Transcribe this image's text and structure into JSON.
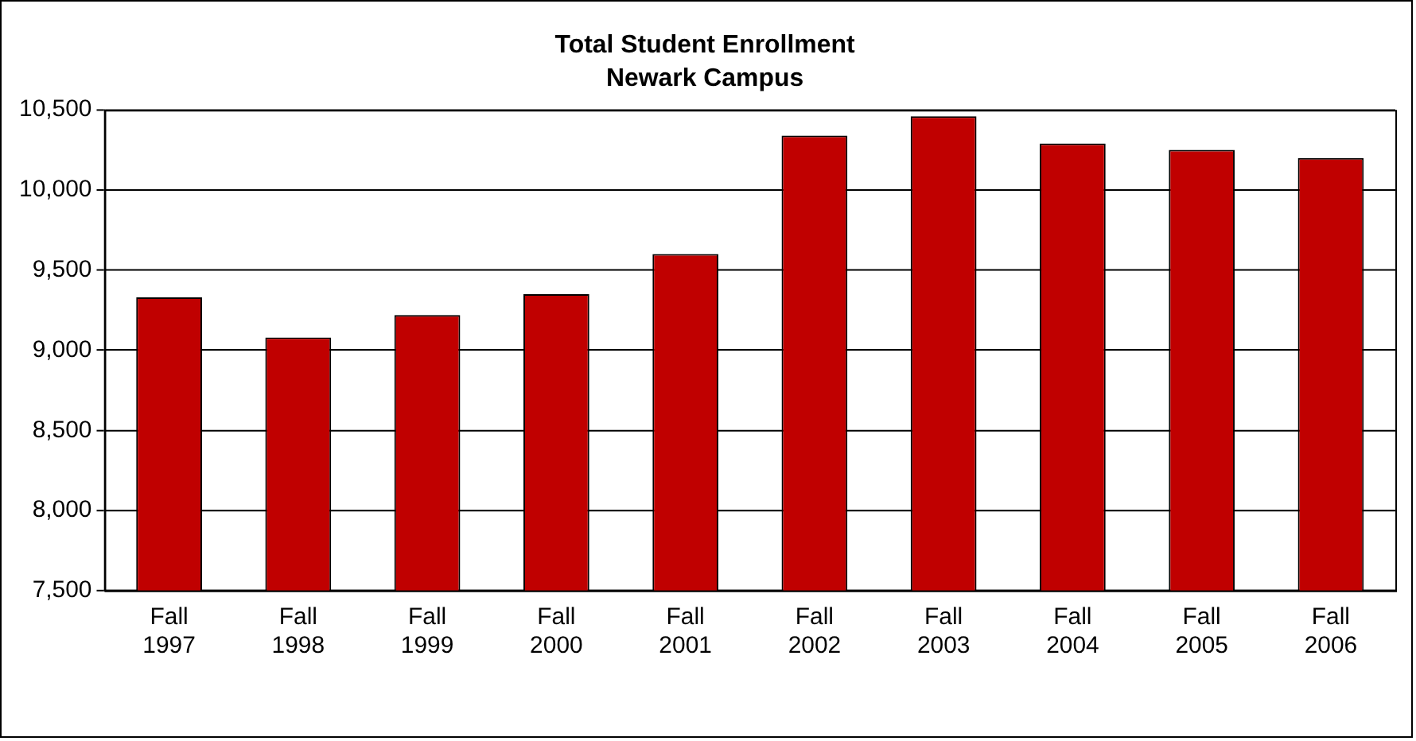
{
  "chart_data": {
    "type": "bar",
    "title": "Total Student Enrollment",
    "subtitle": "Newark Campus",
    "categories": [
      "Fall 1997",
      "Fall 1998",
      "Fall 1999",
      "Fall 2000",
      "Fall 2001",
      "Fall 2002",
      "Fall 2003",
      "Fall 2004",
      "Fall 2005",
      "Fall 2006"
    ],
    "values": [
      9330,
      9080,
      9220,
      9350,
      9600,
      10340,
      10460,
      10290,
      10250,
      10200
    ],
    "color": "#c00000",
    "ylim": [
      7500,
      10500
    ],
    "yticks": [
      {
        "value": 7500,
        "label": "7,500"
      },
      {
        "value": 8000,
        "label": "8,000"
      },
      {
        "value": 8500,
        "label": "8,500"
      },
      {
        "value": 9000,
        "label": "9,000"
      },
      {
        "value": 9500,
        "label": "9,500"
      },
      {
        "value": 10000,
        "label": "10,000"
      },
      {
        "value": 10500,
        "label": "10,500"
      }
    ],
    "grid": "y",
    "legend": false
  }
}
